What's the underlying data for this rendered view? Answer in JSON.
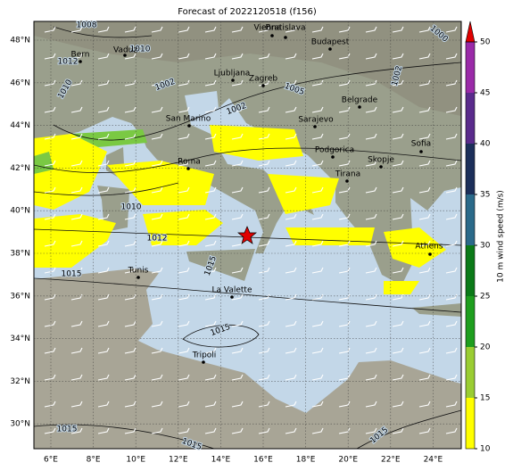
{
  "title": "Forecast of 2022120518 (f156)",
  "map": {
    "lon_ticks": [
      {
        "value": 6,
        "label": "6°E"
      },
      {
        "value": 8,
        "label": "8°E"
      },
      {
        "value": 10,
        "label": "10°E"
      },
      {
        "value": 12,
        "label": "12°E"
      },
      {
        "value": 14,
        "label": "14°E"
      },
      {
        "value": 16,
        "label": "16°E"
      },
      {
        "value": 18,
        "label": "18°E"
      },
      {
        "value": 20,
        "label": "20°E"
      },
      {
        "value": 22,
        "label": "22°E"
      },
      {
        "value": 24,
        "label": "24°E"
      }
    ],
    "lat_ticks": [
      {
        "value": 30,
        "label": "30°N"
      },
      {
        "value": 32,
        "label": "32°N"
      },
      {
        "value": 34,
        "label": "34°N"
      },
      {
        "value": 36,
        "label": "36°N"
      },
      {
        "value": 38,
        "label": "38°N"
      },
      {
        "value": 40,
        "label": "40°N"
      },
      {
        "value": 42,
        "label": "42°N"
      },
      {
        "value": 44,
        "label": "44°N"
      },
      {
        "value": 46,
        "label": "46°N"
      },
      {
        "value": 48,
        "label": "48°N"
      }
    ],
    "cities": [
      "Bern",
      "Vaduz",
      "Vienna",
      "Bratislava",
      "Budapest",
      "Ljubljana",
      "Zagreb",
      "Belgrade",
      "San Marino",
      "Sarajevo",
      "Roma",
      "Podgorica",
      "Sofia",
      "Skopje",
      "Tirana",
      "Athens",
      "Tunis",
      "La Valette",
      "Tripoli"
    ],
    "isobar_labels": [
      "1008",
      "1010",
      "1012",
      "1010",
      "1002",
      "1005",
      "1002",
      "1002",
      "1000",
      "1010",
      "1012",
      "1015",
      "1015",
      "1015",
      "1015",
      "1015",
      "1015"
    ]
  },
  "colorbar": {
    "label": "10 m wind speed (m/s)",
    "ticks": [
      10,
      15,
      20,
      25,
      30,
      35,
      40,
      45,
      50
    ],
    "colors": [
      "#ffff00",
      "#9acd32",
      "#1e9e1e",
      "#0b7a18",
      "#2b6a8a",
      "#1c2f5a",
      "#5a2b8c",
      "#9a2aa8"
    ],
    "extend_color": "#e00000"
  }
}
